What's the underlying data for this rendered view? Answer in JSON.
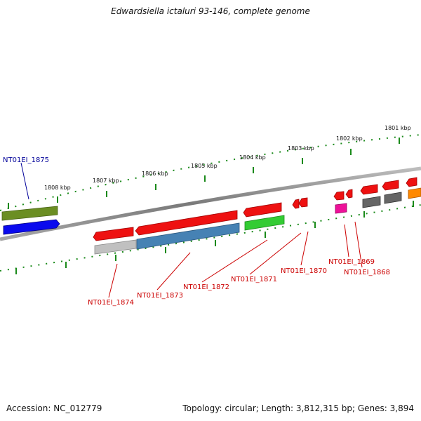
{
  "title": "Edwardsiella ictaluri 93-146, complete genome",
  "footer": {
    "accession": "Accession: NC_012779",
    "summary": "Topology: circular; Length: 3,812,315 bp; Genes: 3,894"
  },
  "scale_labels": [
    "1808 kbp",
    "1807 kbp",
    "1806 kbp",
    "1805 kbp",
    "1804 kbp",
    "1803 kbp",
    "1802 kbp",
    "1801 kbp"
  ],
  "gene_labels": [
    "NT01EI_1875",
    "NT01EI_1874",
    "NT01EI_1873",
    "NT01EI_1872",
    "NT01EI_1871",
    "NT01EI_1870",
    "NT01EI_1869",
    "NT01EI_1868"
  ],
  "colors": {
    "highlight_label": "#cc0000",
    "blue_label": "#000099",
    "backbone": "#888888",
    "tick": "#228822"
  }
}
